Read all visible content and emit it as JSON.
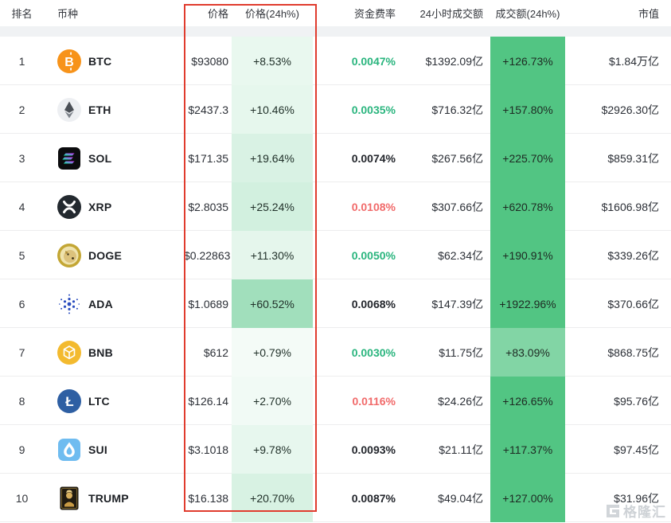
{
  "table": {
    "headers": {
      "rank": "排名",
      "coin": "币种",
      "price": "价格",
      "price_change": "价格(24h%)",
      "funding": "资金费率",
      "volume": "24小时成交额",
      "volume_change": "成交额(24h%)",
      "mcap": "市值"
    },
    "rows": [
      {
        "rank": "1",
        "symbol": "BTC",
        "icon": "btc-icon",
        "price": "$93080",
        "price_change": "+8.53%",
        "price_change_value": 8.53,
        "funding": "0.0047%",
        "funding_color": "green",
        "volume": "$1392.09亿",
        "volume_change": "+126.73%",
        "volume_change_value": 126.73,
        "mcap": "$1.84万亿"
      },
      {
        "rank": "2",
        "symbol": "ETH",
        "icon": "eth-icon",
        "price": "$2437.3",
        "price_change": "+10.46%",
        "price_change_value": 10.46,
        "funding": "0.0035%",
        "funding_color": "green",
        "volume": "$716.32亿",
        "volume_change": "+157.80%",
        "volume_change_value": 157.8,
        "mcap": "$2926.30亿"
      },
      {
        "rank": "3",
        "symbol": "SOL",
        "icon": "sol-icon",
        "price": "$171.35",
        "price_change": "+19.64%",
        "price_change_value": 19.64,
        "funding": "0.0074%",
        "funding_color": "dark",
        "volume": "$267.56亿",
        "volume_change": "+225.70%",
        "volume_change_value": 225.7,
        "mcap": "$859.31亿"
      },
      {
        "rank": "4",
        "symbol": "XRP",
        "icon": "xrp-icon",
        "price": "$2.8035",
        "price_change": "+25.24%",
        "price_change_value": 25.24,
        "funding": "0.0108%",
        "funding_color": "red",
        "volume": "$307.66亿",
        "volume_change": "+620.78%",
        "volume_change_value": 620.78,
        "mcap": "$1606.98亿"
      },
      {
        "rank": "5",
        "symbol": "DOGE",
        "icon": "doge-icon",
        "price": "$0.22863",
        "price_change": "+11.30%",
        "price_change_value": 11.3,
        "funding": "0.0050%",
        "funding_color": "green",
        "volume": "$62.34亿",
        "volume_change": "+190.91%",
        "volume_change_value": 190.91,
        "mcap": "$339.26亿"
      },
      {
        "rank": "6",
        "symbol": "ADA",
        "icon": "ada-icon",
        "price": "$1.0689",
        "price_change": "+60.52%",
        "price_change_value": 60.52,
        "funding": "0.0068%",
        "funding_color": "dark",
        "volume": "$147.39亿",
        "volume_change": "+1922.96%",
        "volume_change_value": 1922.96,
        "mcap": "$370.66亿"
      },
      {
        "rank": "7",
        "symbol": "BNB",
        "icon": "bnb-icon",
        "price": "$612",
        "price_change": "+0.79%",
        "price_change_value": 0.79,
        "funding": "0.0030%",
        "funding_color": "green",
        "volume": "$11.75亿",
        "volume_change": "+83.09%",
        "volume_change_value": 83.09,
        "mcap": "$868.75亿"
      },
      {
        "rank": "8",
        "symbol": "LTC",
        "icon": "ltc-icon",
        "price": "$126.14",
        "price_change": "+2.70%",
        "price_change_value": 2.7,
        "funding": "0.0116%",
        "funding_color": "red",
        "volume": "$24.26亿",
        "volume_change": "+126.65%",
        "volume_change_value": 126.65,
        "mcap": "$95.76亿"
      },
      {
        "rank": "9",
        "symbol": "SUI",
        "icon": "sui-icon",
        "price": "$3.1018",
        "price_change": "+9.78%",
        "price_change_value": 9.78,
        "funding": "0.0093%",
        "funding_color": "dark",
        "volume": "$21.11亿",
        "volume_change": "+117.37%",
        "volume_change_value": 117.37,
        "mcap": "$97.45亿"
      },
      {
        "rank": "10",
        "symbol": "TRUMP",
        "icon": "trump-icon",
        "price": "$16.138",
        "price_change": "+20.70%",
        "price_change_value": 20.7,
        "funding": "0.0087%",
        "funding_color": "dark",
        "volume": "$49.04亿",
        "volume_change": "+127.00%",
        "volume_change_value": 127.0,
        "mcap": "$31.96亿"
      }
    ]
  },
  "colors": {
    "heat_green_base": "#52c583",
    "funding_green": "#2ab57e",
    "funding_red": "#f16a6a",
    "funding_dark": "#23262c",
    "annotation_red": "#e03c2e"
  },
  "watermark": {
    "text": "格隆汇"
  }
}
